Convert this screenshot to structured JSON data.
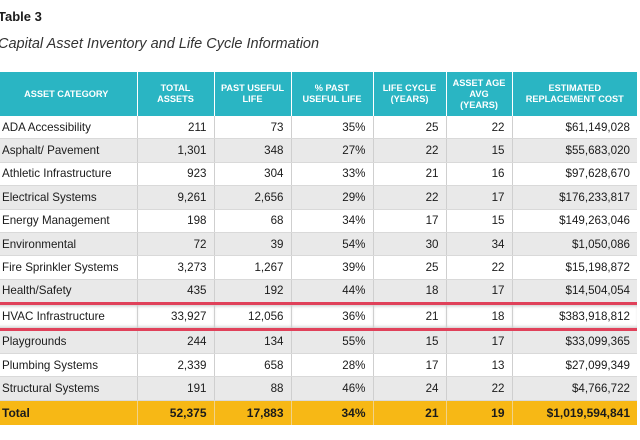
{
  "table_label": "Table 3",
  "caption": "Capital Asset Inventory and Life Cycle Information",
  "columns": [
    "Asset Category",
    "Total Assets",
    "Past Useful Life",
    "% Past Useful Life",
    "Life Cycle (Years)",
    "Asset Age Avg (Years)",
    "Estimated Replacement Cost"
  ],
  "rows": [
    [
      "ADA Accessibility",
      "211",
      "73",
      "35%",
      "25",
      "22",
      "$61,149,028"
    ],
    [
      "Asphalt/ Pavement",
      "1,301",
      "348",
      "27%",
      "22",
      "15",
      "$55,683,020"
    ],
    [
      "Athletic Infrastructure",
      "923",
      "304",
      "33%",
      "21",
      "16",
      "$97,628,670"
    ],
    [
      "Electrical Systems",
      "9,261",
      "2,656",
      "29%",
      "22",
      "17",
      "$176,233,817"
    ],
    [
      "Energy Management",
      "198",
      "68",
      "34%",
      "17",
      "15",
      "$149,263,046"
    ],
    [
      "Environmental",
      "72",
      "39",
      "54%",
      "30",
      "34",
      "$1,050,086"
    ],
    [
      "Fire Sprinkler Systems",
      "3,273",
      "1,267",
      "39%",
      "25",
      "22",
      "$15,198,872"
    ],
    [
      "Health/Safety",
      "435",
      "192",
      "44%",
      "18",
      "17",
      "$14,504,054"
    ],
    [
      "HVAC Infrastructure",
      "33,927",
      "12,056",
      "36%",
      "21",
      "18",
      "$383,918,812"
    ],
    [
      "Playgrounds",
      "244",
      "134",
      "55%",
      "15",
      "17",
      "$33,099,365"
    ],
    [
      "Plumbing Systems",
      "2,339",
      "658",
      "28%",
      "17",
      "13",
      "$27,099,349"
    ],
    [
      "Structural Systems",
      "191",
      "88",
      "46%",
      "24",
      "22",
      "$4,766,722"
    ]
  ],
  "total": [
    "Total",
    "52,375",
    "17,883",
    "34%",
    "21",
    "19",
    "$1,019,594,841"
  ],
  "highlighted_row": "HVAC Infrastructure",
  "colors": {
    "header": "#2ab5c3",
    "total_row": "#f7b815",
    "highlight_border": "#e0415a",
    "stripe": "#e9e9e9"
  }
}
